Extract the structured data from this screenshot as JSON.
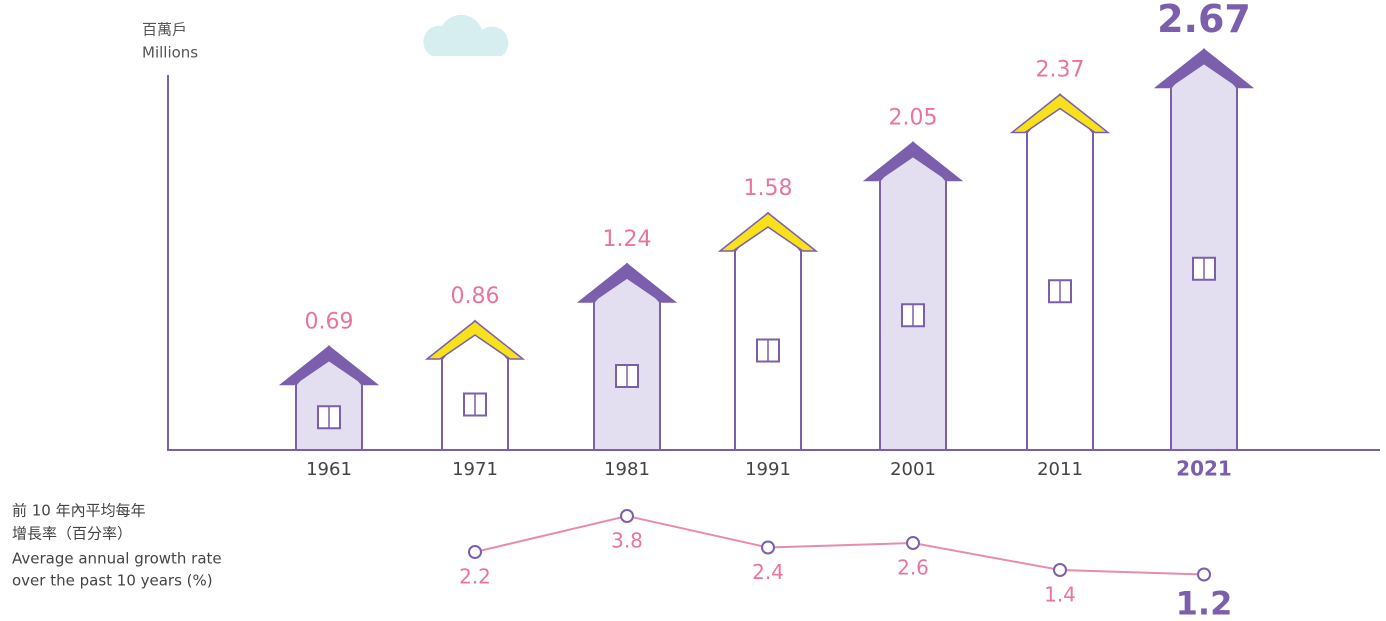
{
  "chart_data": [
    {
      "type": "bar",
      "y_label": "百萬戶",
      "y_label_en": "Millions",
      "categories": [
        "1961",
        "1971",
        "1981",
        "1991",
        "2001",
        "2011",
        "2021"
      ],
      "values": [
        0.69,
        0.86,
        1.24,
        1.58,
        2.05,
        2.37,
        2.67
      ],
      "ylim": [
        0,
        3
      ],
      "colors": [
        "#e4dff0",
        "#ffffff",
        "#e4dff0",
        "#ffffff",
        "#e4dff0",
        "#ffffff",
        "#e4dff0"
      ],
      "roof_colors": [
        "#7b5fad",
        "#f7e11b",
        "#7b5fad",
        "#f7e11b",
        "#7b5fad",
        "#f7e11b",
        "#7b5fad"
      ]
    },
    {
      "type": "line",
      "title": "前 10 年內平均每年",
      "title_2": "增長率（百分率）",
      "title_en": "Average annual growth rate",
      "title_en_2": "over the past 10 years (%)",
      "values": [
        2.2,
        3.8,
        2.4,
        2.6,
        1.4,
        1.2
      ],
      "ylim": [
        0,
        4
      ],
      "color": "#e98bb0"
    }
  ]
}
